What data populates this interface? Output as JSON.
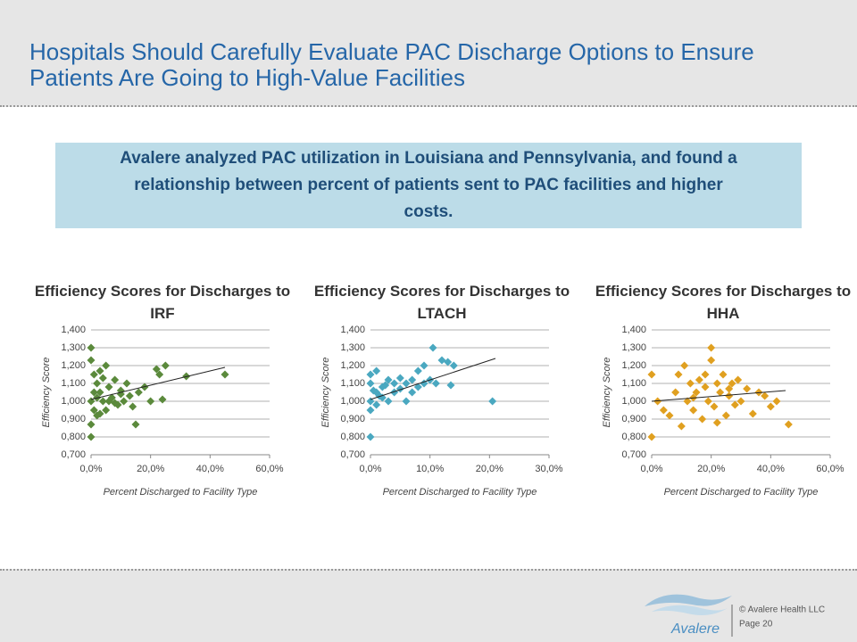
{
  "header": {
    "title": "Hospitals Should Carefully Evaluate PAC Discharge Options to Ensure Patients Are Going to High-Value Facilities"
  },
  "callout": {
    "text": "Avalere analyzed PAC utilization in Louisiana and Pennsylvania, and found a relationship between percent of patients sent to PAC facilities and higher costs."
  },
  "footer": {
    "logo": "Avalere",
    "copyright": "© Avalere Health LLC",
    "page": "Page 20"
  },
  "chart_data": [
    {
      "type": "scatter",
      "title": "Efficiency Scores for Discharges to IRF",
      "x_label": "Percent Discharged to Facility Type",
      "y_label": "Efficiency Score",
      "xlim": [
        0,
        60
      ],
      "xticks": [
        {
          "value": 0,
          "label": "0,0%"
        },
        {
          "value": 20,
          "label": "20,0%"
        },
        {
          "value": 40,
          "label": "40,0%"
        },
        {
          "value": 60,
          "label": "60,0%"
        }
      ],
      "ylim": [
        0.7,
        1.4
      ],
      "yticks": [
        {
          "value": 0.7,
          "label": "0,700"
        },
        {
          "value": 0.8,
          "label": "0,800"
        },
        {
          "value": 0.9,
          "label": "0,900"
        },
        {
          "value": 1.0,
          "label": "1,000"
        },
        {
          "value": 1.1,
          "label": "1,100"
        },
        {
          "value": 1.2,
          "label": "1,200"
        },
        {
          "value": 1.3,
          "label": "1,300"
        },
        {
          "value": 1.4,
          "label": "1,400"
        }
      ],
      "grid": true,
      "series": [
        {
          "color": "#5b8a3c",
          "x": [
            0,
            0,
            0,
            0,
            0,
            1,
            1,
            2,
            2,
            3,
            3,
            4,
            5,
            5,
            6,
            7,
            8,
            9,
            10,
            11,
            12,
            13,
            14,
            15,
            16,
            18,
            20,
            22,
            23,
            24,
            25,
            32,
            45,
            1,
            2,
            4,
            6,
            8,
            10,
            3
          ],
          "values": [
            1.3,
            0.8,
            0.87,
            1.23,
            1.0,
            1.15,
            0.95,
            1.1,
            0.92,
            1.05,
            1.17,
            1.0,
            1.2,
            0.95,
            1.08,
            1.02,
            1.12,
            0.98,
            1.06,
            1.0,
            1.1,
            1.03,
            0.97,
            0.87,
            1.05,
            1.08,
            1.0,
            1.18,
            1.15,
            1.01,
            1.2,
            1.14,
            1.15,
            1.05,
            1.02,
            1.13,
            1.0,
            0.99,
            1.04,
            0.93
          ]
        }
      ],
      "trendline": {
        "x": [
          0,
          45
        ],
        "y": [
          1.01,
          1.19
        ]
      }
    },
    {
      "type": "scatter",
      "title": "Efficiency Scores for Discharges to LTACH",
      "x_label": "Percent Discharged to Facility Type",
      "y_label": "Efficiency Score",
      "xlim": [
        0,
        30
      ],
      "xticks": [
        {
          "value": 0,
          "label": "0,0%"
        },
        {
          "value": 10,
          "label": "10,0%"
        },
        {
          "value": 20,
          "label": "20,0%"
        },
        {
          "value": 30,
          "label": "30,0%"
        }
      ],
      "ylim": [
        0.7,
        1.4
      ],
      "yticks": [
        {
          "value": 0.7,
          "label": "0,700"
        },
        {
          "value": 0.8,
          "label": "0,800"
        },
        {
          "value": 0.9,
          "label": "0,900"
        },
        {
          "value": 1.0,
          "label": "1,000"
        },
        {
          "value": 1.1,
          "label": "1,100"
        },
        {
          "value": 1.2,
          "label": "1,200"
        },
        {
          "value": 1.3,
          "label": "1,300"
        },
        {
          "value": 1.4,
          "label": "1,400"
        }
      ],
      "grid": true,
      "series": [
        {
          "color": "#4aa8c0",
          "x": [
            0,
            0,
            0,
            0,
            0,
            1,
            1,
            1,
            2,
            2,
            3,
            3,
            4,
            4,
            5,
            5,
            6,
            6,
            7,
            7,
            8,
            8,
            9,
            9,
            10,
            10.5,
            11,
            12,
            13,
            13.5,
            14,
            20.5,
            0.5,
            1.5,
            2.5
          ],
          "values": [
            0.8,
            1.15,
            1.0,
            1.1,
            0.95,
            1.05,
            1.17,
            0.98,
            1.08,
            1.02,
            1.12,
            1.0,
            1.05,
            1.1,
            1.07,
            1.13,
            1.0,
            1.1,
            1.12,
            1.05,
            1.17,
            1.08,
            1.2,
            1.1,
            1.12,
            1.3,
            1.1,
            1.23,
            1.22,
            1.09,
            1.2,
            1.0,
            1.06,
            1.03,
            1.09
          ]
        }
      ],
      "trendline": {
        "x": [
          0,
          21
        ],
        "y": [
          1.01,
          1.24
        ]
      }
    },
    {
      "type": "scatter",
      "title": "Efficiency Scores for Discharges to HHA",
      "x_label": "Percent Discharged to Facility Type",
      "y_label": "Efficiency Score",
      "xlim": [
        0,
        60
      ],
      "xticks": [
        {
          "value": 0,
          "label": "0,0%"
        },
        {
          "value": 20,
          "label": "20,0%"
        },
        {
          "value": 40,
          "label": "40,0%"
        },
        {
          "value": 60,
          "label": "60,0%"
        }
      ],
      "ylim": [
        0.7,
        1.4
      ],
      "yticks": [
        {
          "value": 0.7,
          "label": "0,700"
        },
        {
          "value": 0.8,
          "label": "0,800"
        },
        {
          "value": 0.9,
          "label": "0,900"
        },
        {
          "value": 1.0,
          "label": "1,000"
        },
        {
          "value": 1.1,
          "label": "1,100"
        },
        {
          "value": 1.2,
          "label": "1,200"
        },
        {
          "value": 1.3,
          "label": "1,300"
        },
        {
          "value": 1.4,
          "label": "1,400"
        }
      ],
      "grid": true,
      "series": [
        {
          "color": "#e0a020",
          "x": [
            0,
            0,
            2,
            4,
            6,
            8,
            9,
            10,
            11,
            12,
            13,
            14,
            15,
            16,
            17,
            18,
            19,
            20,
            20,
            21,
            22,
            23,
            24,
            25,
            26,
            27,
            28,
            29,
            30,
            32,
            34,
            36,
            38,
            40,
            42,
            46,
            14,
            18,
            22,
            26
          ],
          "values": [
            0.8,
            1.15,
            1.0,
            0.95,
            0.92,
            1.05,
            1.15,
            0.86,
            1.2,
            1.0,
            1.1,
            0.95,
            1.05,
            1.12,
            0.9,
            1.08,
            1.0,
            1.3,
            1.23,
            0.97,
            1.1,
            1.05,
            1.15,
            0.92,
            1.03,
            1.1,
            0.98,
            1.12,
            1.0,
            1.07,
            0.93,
            1.05,
            1.03,
            0.97,
            1.0,
            0.87,
            1.02,
            1.15,
            0.88,
            1.07
          ]
        }
      ],
      "trendline": {
        "x": [
          0,
          45
        ],
        "y": [
          1.0,
          1.06
        ]
      }
    }
  ]
}
